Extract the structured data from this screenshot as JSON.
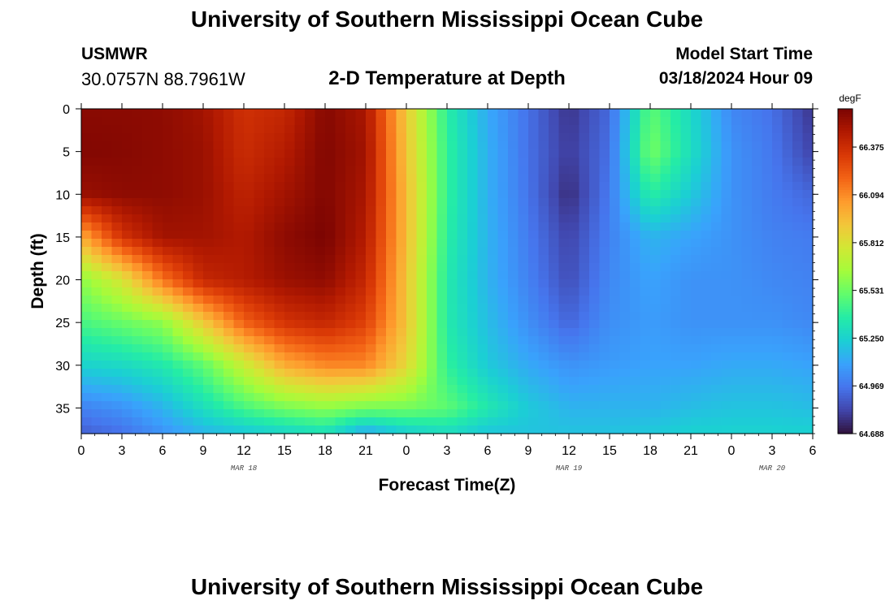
{
  "header": {
    "title": "University of Southern Mississippi Ocean Cube",
    "station": "USMWR",
    "coords": "30.0757N  88.7961W",
    "subtitle": "2-D Temperature at Depth",
    "start_label": "Model Start Time",
    "start_value": "03/18/2024 Hour 09"
  },
  "footer": {
    "title": "University of Southern Mississippi Ocean Cube"
  },
  "chart_data": {
    "type": "heatmap",
    "title": "2-D Temperature at Depth",
    "xlabel": "Forecast Time(Z)",
    "ylabel": "Depth (ft)",
    "x_range_hours": [
      0,
      54
    ],
    "x_ticks": [
      "0",
      "3",
      "6",
      "9",
      "12",
      "15",
      "18",
      "21",
      "0",
      "3",
      "6",
      "9",
      "12",
      "15",
      "18",
      "21",
      "0",
      "3",
      "6"
    ],
    "x_day_labels": [
      {
        "label": "MAR 18",
        "tick_index": 4
      },
      {
        "label": "MAR 19",
        "tick_index": 12
      },
      {
        "label": "MAR 20",
        "tick_index": 17
      }
    ],
    "y_range_ft": [
      0,
      38
    ],
    "y_inverted": true,
    "y_ticks": [
      0,
      5,
      10,
      15,
      20,
      25,
      30,
      35
    ],
    "colorbar": {
      "unit": "degF",
      "min": 64.688,
      "max": 66.6,
      "tick_labels": [
        "66.375",
        "66.094",
        "65.812",
        "65.531",
        "65.250",
        "64.969",
        "64.688"
      ],
      "colors": [
        "#30123b",
        "#4145ab",
        "#4675ed",
        "#39a2fc",
        "#1bcfd4",
        "#24eca6",
        "#61fc6c",
        "#a4fc3b",
        "#d1e834",
        "#f3c63a",
        "#fe9b2d",
        "#f36315",
        "#d93806",
        "#b11901",
        "#7a0402"
      ]
    },
    "columns_hours": [
      0,
      3,
      6,
      9,
      12,
      15,
      18,
      21,
      24,
      27,
      30,
      33,
      36,
      39,
      42,
      45,
      48,
      51,
      54
    ],
    "rows_depth_ft": [
      0,
      5,
      10,
      15,
      20,
      25,
      30,
      35,
      38
    ],
    "values_degF": [
      [
        66.56,
        66.56,
        66.55,
        66.5,
        66.36,
        66.4,
        66.57,
        66.48,
        65.9,
        65.38,
        65.12,
        64.95,
        64.78,
        64.93,
        65.5,
        65.28,
        65.02,
        64.95,
        64.78
      ],
      [
        66.58,
        66.57,
        66.55,
        66.52,
        66.38,
        66.45,
        66.58,
        66.5,
        65.92,
        65.4,
        65.14,
        64.95,
        64.8,
        64.95,
        65.55,
        65.3,
        65.05,
        64.97,
        64.82
      ],
      [
        66.52,
        66.55,
        66.55,
        66.52,
        66.42,
        66.5,
        66.58,
        66.48,
        65.95,
        65.4,
        65.14,
        64.96,
        64.76,
        64.98,
        65.38,
        65.22,
        65.05,
        64.98,
        64.92
      ],
      [
        66.0,
        66.35,
        66.5,
        66.5,
        66.46,
        66.55,
        66.6,
        66.45,
        65.95,
        65.38,
        65.15,
        64.98,
        64.82,
        65.0,
        65.15,
        65.1,
        65.05,
        65.0,
        64.98
      ],
      [
        65.6,
        65.8,
        66.15,
        66.4,
        66.45,
        66.52,
        66.55,
        66.4,
        65.92,
        65.36,
        65.15,
        65.0,
        64.85,
        65.02,
        65.1,
        65.05,
        65.05,
        65.02,
        65.0
      ],
      [
        65.45,
        65.52,
        65.6,
        65.9,
        66.2,
        66.35,
        66.4,
        66.3,
        65.92,
        65.36,
        65.18,
        65.04,
        64.92,
        65.04,
        65.08,
        65.05,
        65.05,
        65.05,
        65.02
      ],
      [
        65.25,
        65.28,
        65.35,
        65.5,
        65.75,
        66.0,
        66.1,
        66.1,
        65.85,
        65.4,
        65.22,
        65.12,
        65.05,
        65.08,
        65.1,
        65.1,
        65.12,
        65.12,
        65.1
      ],
      [
        65.0,
        65.05,
        65.15,
        65.3,
        65.45,
        65.55,
        65.6,
        65.55,
        65.55,
        65.5,
        65.35,
        65.22,
        65.15,
        65.15,
        65.15,
        65.18,
        65.2,
        65.2,
        65.18
      ],
      [
        64.9,
        64.95,
        65.05,
        65.15,
        65.2,
        65.25,
        65.3,
        65.1,
        65.22,
        65.28,
        65.2,
        65.2,
        65.2,
        65.2,
        65.22,
        65.25,
        65.25,
        65.25,
        65.25
      ]
    ]
  }
}
